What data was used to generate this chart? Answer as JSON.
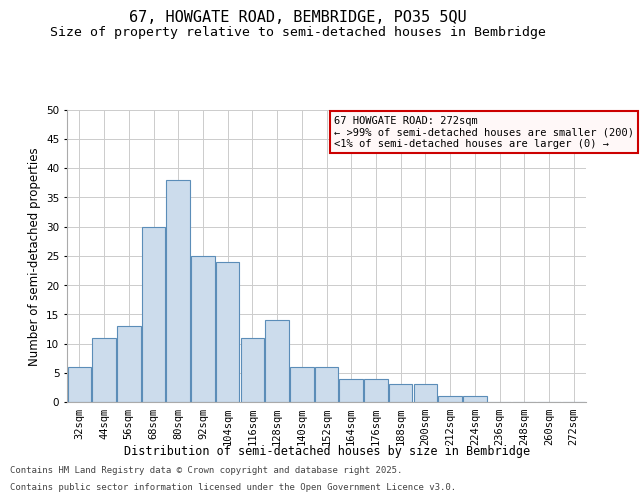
{
  "title1": "67, HOWGATE ROAD, BEMBRIDGE, PO35 5QU",
  "title2": "Size of property relative to semi-detached houses in Bembridge",
  "xlabel": "Distribution of semi-detached houses by size in Bembridge",
  "ylabel": "Number of semi-detached properties",
  "bar_labels": [
    "32sqm",
    "44sqm",
    "56sqm",
    "68sqm",
    "80sqm",
    "92sqm",
    "104sqm",
    "116sqm",
    "128sqm",
    "140sqm",
    "152sqm",
    "164sqm",
    "176sqm",
    "188sqm",
    "200sqm",
    "212sqm",
    "224sqm",
    "236sqm",
    "248sqm",
    "260sqm",
    "272sqm"
  ],
  "bar_values": [
    6,
    11,
    13,
    30,
    38,
    25,
    24,
    11,
    14,
    6,
    6,
    4,
    4,
    3,
    3,
    1,
    1,
    0,
    0,
    0,
    0
  ],
  "bar_color": "#ccdcec",
  "bar_edge_color": "#5b8db8",
  "ylim": [
    0,
    50
  ],
  "yticks": [
    0,
    5,
    10,
    15,
    20,
    25,
    30,
    35,
    40,
    45,
    50
  ],
  "annotation_title": "67 HOWGATE ROAD: 272sqm",
  "annotation_line1": "← >99% of semi-detached houses are smaller (200)",
  "annotation_line2": "<1% of semi-detached houses are larger (0) →",
  "annotation_box_facecolor": "#fff8f8",
  "annotation_box_edge_color": "#cc0000",
  "footer1": "Contains HM Land Registry data © Crown copyright and database right 2025.",
  "footer2": "Contains public sector information licensed under the Open Government Licence v3.0.",
  "background_color": "#ffffff",
  "grid_color": "#cccccc",
  "title_fontsize": 11,
  "subtitle_fontsize": 9.5,
  "axis_label_fontsize": 8.5,
  "tick_fontsize": 7.5,
  "annotation_fontsize": 7.5,
  "footer_fontsize": 6.5
}
